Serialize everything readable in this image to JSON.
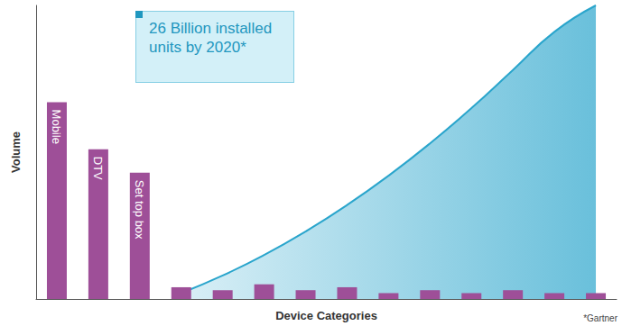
{
  "chart_data": {
    "type": "bar",
    "y_label": "Volume",
    "x_label": "Device Categories",
    "categories": [
      "Mobile",
      "DTV",
      "Set top box",
      null,
      null,
      null,
      null,
      null,
      null,
      null,
      null,
      null,
      null,
      null
    ],
    "series": [
      {
        "type": "bar",
        "color": "#9e4f98",
        "values": [
          67,
          51,
          43,
          4,
          3,
          5,
          3,
          4,
          2,
          3,
          2,
          3,
          2,
          2
        ]
      },
      {
        "type": "area",
        "color": "#2aa5cc",
        "values": [
          null,
          null,
          null,
          2,
          8,
          15,
          23,
          32,
          42,
          53,
          65,
          78,
          91,
          100
        ]
      }
    ],
    "ylim": [
      0,
      100
    ],
    "grid": false,
    "tick_labels": false,
    "annotation": "26 Billion installed units by 2020*",
    "source": "*Gartner"
  }
}
